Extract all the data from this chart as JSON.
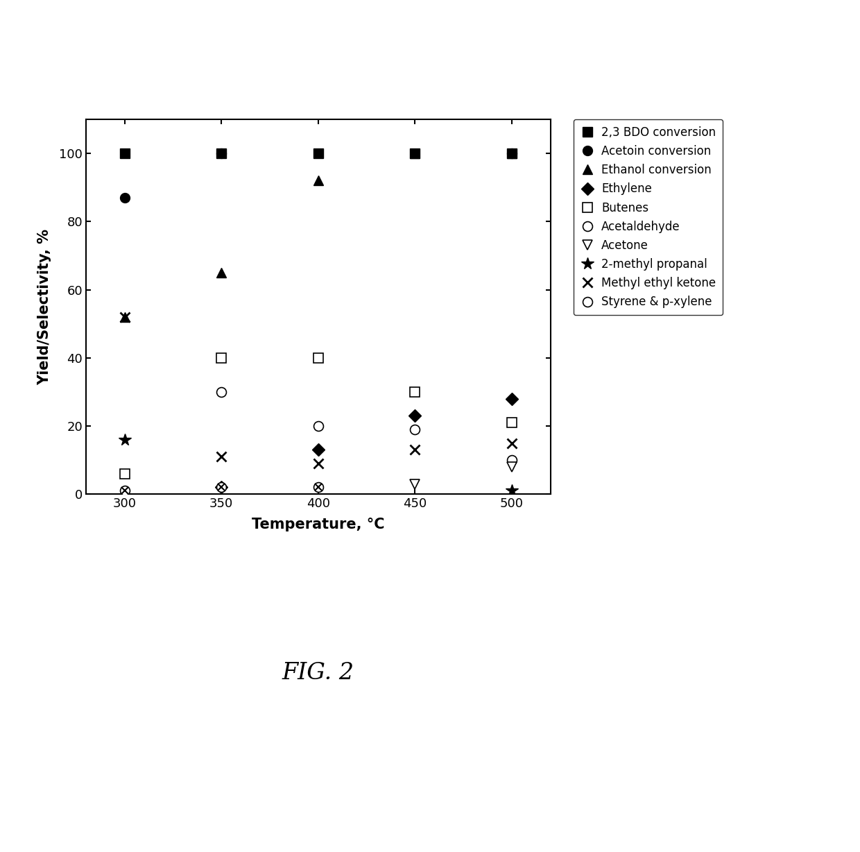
{
  "temperatures": [
    300,
    350,
    400,
    450,
    500
  ],
  "xlabel": "Temperature, °C",
  "ylabel": "Yield/Selectivity, %",
  "ylim": [
    0,
    110
  ],
  "yticks": [
    0,
    20,
    40,
    60,
    80,
    100
  ],
  "xticks": [
    300,
    350,
    400,
    450,
    500
  ],
  "figsize": [
    12.4,
    12.28
  ],
  "dpi": 100,
  "fig2_label": "FIG. 2",
  "series": [
    {
      "name": "2,3 BDO conversion",
      "marker": "s",
      "filled": true,
      "ms": 10,
      "values": [
        100,
        100,
        100,
        100,
        100
      ]
    },
    {
      "name": "Acetoin conversion",
      "marker": "o",
      "filled": true,
      "ms": 10,
      "values": [
        87,
        100,
        null,
        null,
        100
      ]
    },
    {
      "name": "Ethanol conversion",
      "marker": "^",
      "filled": true,
      "ms": 10,
      "values": [
        52,
        65,
        92,
        100,
        100
      ]
    },
    {
      "name": "Ethylene",
      "marker": "D",
      "filled": true,
      "ms": 9,
      "values": [
        null,
        2,
        13,
        23,
        28
      ]
    },
    {
      "name": "Butenes",
      "marker": "s",
      "filled": false,
      "ms": 10,
      "values": [
        6,
        40,
        40,
        30,
        21
      ]
    },
    {
      "name": "Acetaldehyde",
      "marker": "o",
      "filled": false,
      "ms": 10,
      "values": [
        null,
        30,
        20,
        19,
        10
      ]
    },
    {
      "name": "Acetone",
      "marker": "v",
      "filled": false,
      "ms": 10,
      "values": [
        null,
        null,
        null,
        3,
        8
      ]
    },
    {
      "name": "2-methyl propanal",
      "marker": "*",
      "filled": true,
      "ms": 13,
      "values": [
        16,
        null,
        null,
        null,
        1
      ]
    },
    {
      "name": "Methyl ethyl ketone",
      "marker": "x",
      "filled": true,
      "ms": 10,
      "values": [
        52,
        11,
        9,
        13,
        15
      ]
    },
    {
      "name": "Styrene & p-xylene",
      "marker": "circle_x",
      "filled": true,
      "ms": 10,
      "values": [
        1,
        2,
        2,
        null,
        null
      ]
    }
  ]
}
